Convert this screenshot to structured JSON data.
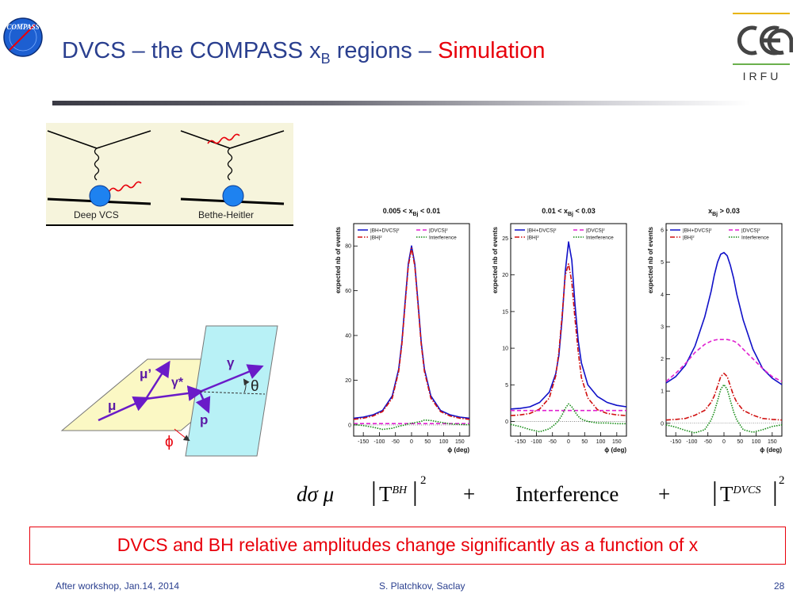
{
  "header": {
    "title_prefix": "DVCS – the COMPASS x",
    "title_sub": "B",
    "title_mid": " regions – ",
    "title_highlight": "Simulation",
    "logo_left": "COMPASS",
    "logo_right_sub": "IRFU"
  },
  "diagrams": {
    "left_label": "Deep VCS",
    "right_label": "Bethe-Heitler"
  },
  "kinematics": {
    "mu": "μ",
    "mu_prime": "μ’",
    "gamma_star": "γ*",
    "gamma": "γ",
    "theta": "θ",
    "proton": "p",
    "phi": "ϕ"
  },
  "legend_labels": {
    "total": "|BH+DVCS|²",
    "dvcs": "|DVCS|²",
    "bh": "|BH|²",
    "interference": "Interference"
  },
  "colors": {
    "total": "#1010c8",
    "dvcs": "#e020d0",
    "bh": "#d01010",
    "interference": "#138a13",
    "title": "#2a3f8f",
    "highlight": "#e8000b"
  },
  "chart_data": [
    {
      "type": "line",
      "title_main": "0.005 < x",
      "title_sub": "Bj",
      "title_end": " < 0.01",
      "xlabel": "ϕ (deg)",
      "ylabel": "expected nb of events",
      "xlim": [
        -180,
        180
      ],
      "ylim": [
        -5,
        90
      ],
      "xticks": [
        -150,
        -100,
        -50,
        0,
        50,
        100,
        150
      ],
      "yticks": [
        0,
        20,
        40,
        60,
        80
      ],
      "legend": "top",
      "x": [
        -180,
        -150,
        -120,
        -90,
        -60,
        -40,
        -30,
        -20,
        -10,
        0,
        10,
        20,
        30,
        40,
        60,
        90,
        120,
        150,
        180
      ],
      "series": [
        {
          "name": "|BH+DVCS|²",
          "key": "total",
          "style": "solid",
          "values": [
            3,
            3.5,
            4.5,
            6.5,
            13,
            25,
            37,
            55,
            72,
            80,
            72,
            55,
            37,
            25,
            13,
            6.5,
            4.5,
            3.5,
            3
          ]
        },
        {
          "name": "|BH|²",
          "key": "bh",
          "style": "dashdot",
          "values": [
            2.5,
            3,
            4,
            6,
            12,
            24,
            36,
            54,
            71,
            79,
            71,
            54,
            36,
            24,
            12,
            6,
            4,
            3,
            2.5
          ]
        },
        {
          "name": "|DVCS|²",
          "key": "dvcs",
          "style": "dashed",
          "values": [
            0.6,
            0.6,
            0.6,
            0.6,
            0.6,
            0.6,
            0.6,
            0.6,
            0.6,
            0.6,
            0.6,
            0.6,
            0.6,
            0.6,
            0.6,
            0.6,
            0.6,
            0.6,
            0.6
          ]
        },
        {
          "name": "Interference",
          "key": "interference",
          "style": "dotted",
          "values": [
            0.2,
            -0.3,
            -1,
            -2,
            -1.5,
            -0.6,
            -0.3,
            0,
            0.5,
            0.8,
            1,
            1.3,
            1.6,
            2.2,
            2,
            1.2,
            0.5,
            0.2,
            0.1
          ]
        }
      ]
    },
    {
      "type": "line",
      "title_main": "0.01 < x",
      "title_sub": "Bj",
      "title_end": " < 0.03",
      "xlabel": "ϕ (deg)",
      "ylabel": "expected nb of events",
      "xlim": [
        -180,
        180
      ],
      "ylim": [
        -2,
        27
      ],
      "xticks": [
        -150,
        -100,
        -50,
        0,
        50,
        100,
        150
      ],
      "yticks": [
        0,
        5,
        10,
        15,
        20,
        25
      ],
      "legend": "top",
      "x": [
        -180,
        -150,
        -120,
        -90,
        -60,
        -40,
        -30,
        -20,
        -10,
        0,
        10,
        20,
        30,
        40,
        60,
        90,
        120,
        150,
        180
      ],
      "series": [
        {
          "name": "|BH+DVCS|²",
          "key": "total",
          "style": "solid",
          "values": [
            1.7,
            1.8,
            2.0,
            2.6,
            4.0,
            6.5,
            9,
            14,
            20.5,
            24.5,
            22,
            16,
            11,
            8,
            5,
            3.4,
            2.6,
            2.2,
            2.0
          ]
        },
        {
          "name": "|BH|²",
          "key": "bh",
          "style": "dashdot",
          "values": [
            0.8,
            0.9,
            1.1,
            1.7,
            3.2,
            6.2,
            9.5,
            14.5,
            20,
            21.5,
            19,
            14,
            9.5,
            6,
            3.2,
            1.6,
            1.1,
            0.9,
            0.8
          ]
        },
        {
          "name": "|DVCS|²",
          "key": "dvcs",
          "style": "dashed",
          "values": [
            1.5,
            1.5,
            1.5,
            1.5,
            1.5,
            1.5,
            1.5,
            1.5,
            1.5,
            1.5,
            1.5,
            1.5,
            1.5,
            1.5,
            1.5,
            1.5,
            1.5,
            1.5,
            1.5
          ]
        },
        {
          "name": "Interference",
          "key": "interference",
          "style": "dotted",
          "values": [
            -0.4,
            -0.7,
            -1.1,
            -1.4,
            -1.0,
            -0.3,
            0.2,
            0.9,
            1.8,
            2.4,
            2.0,
            1.3,
            0.7,
            0.3,
            0,
            -0.2,
            -0.2,
            -0.3,
            -0.3
          ]
        }
      ]
    },
    {
      "type": "line",
      "title_main": "x",
      "title_sub": "Bj",
      "title_end": " > 0.03",
      "xlabel": "ϕ (deg)",
      "ylabel": "expected nb of events",
      "xlim": [
        -180,
        180
      ],
      "ylim": [
        -0.4,
        6.2
      ],
      "xticks": [
        -150,
        -100,
        -50,
        0,
        50,
        100,
        150
      ],
      "yticks": [
        0,
        1,
        2,
        3,
        4,
        5,
        6
      ],
      "legend": "top",
      "x": [
        -180,
        -150,
        -120,
        -90,
        -60,
        -40,
        -30,
        -20,
        -10,
        0,
        10,
        20,
        30,
        40,
        60,
        90,
        120,
        150,
        180
      ],
      "series": [
        {
          "name": "|BH+DVCS|²",
          "key": "total",
          "style": "solid",
          "values": [
            1.25,
            1.45,
            1.8,
            2.4,
            3.3,
            4.1,
            4.6,
            5.0,
            5.25,
            5.3,
            5.2,
            4.9,
            4.5,
            4.0,
            3.2,
            2.3,
            1.7,
            1.4,
            1.2
          ]
        },
        {
          "name": "|DVCS|²",
          "key": "dvcs",
          "style": "dashed",
          "values": [
            1.3,
            1.55,
            1.85,
            2.2,
            2.45,
            2.55,
            2.58,
            2.6,
            2.6,
            2.6,
            2.6,
            2.58,
            2.55,
            2.5,
            2.3,
            2.0,
            1.7,
            1.45,
            1.3
          ]
        },
        {
          "name": "|BH|²",
          "key": "bh",
          "style": "dashdot",
          "values": [
            0.1,
            0.12,
            0.15,
            0.25,
            0.4,
            0.65,
            0.85,
            1.15,
            1.45,
            1.55,
            1.45,
            1.15,
            0.85,
            0.65,
            0.4,
            0.25,
            0.15,
            0.12,
            0.1
          ]
        },
        {
          "name": "Interference",
          "key": "interference",
          "style": "dotted",
          "values": [
            -0.05,
            -0.12,
            -0.22,
            -0.3,
            -0.2,
            0.1,
            0.35,
            0.7,
            1.05,
            1.2,
            1.05,
            0.7,
            0.35,
            0.1,
            -0.2,
            -0.28,
            -0.2,
            -0.1,
            -0.05
          ]
        }
      ]
    }
  ],
  "formula": {
    "lhs": "dσ μ",
    "t1": "T",
    "t1_sup": "BH",
    "power": "2",
    "plus": "+",
    "interference": "Interference",
    "t2": "T",
    "t2_sup": "DVCS"
  },
  "conclusion": "DVCS and BH relative amplitudes change significantly as a function of x",
  "footer": {
    "left": "After workshop, Jan.14, 2014",
    "center": "S. Platchkov, Saclay",
    "page": "28"
  }
}
